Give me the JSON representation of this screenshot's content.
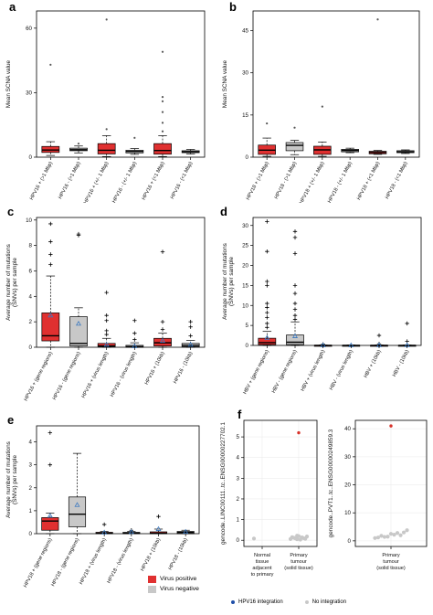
{
  "colors": {
    "positive": "#e03030",
    "negative": "#c8c8c8",
    "mean": "#3a78c0",
    "outlier": "#000000",
    "integration": "#1f4fa8",
    "no_integration": "#c8c8c8",
    "highlight": "#d8322a"
  },
  "legend": {
    "positive_label": "Virus positive",
    "negative_label": "Virus negative",
    "integration_label": "HPV16 integration",
    "no_integration_label": "No integration"
  },
  "chart_data": [
    {
      "id": "a",
      "panel_label": "a",
      "type": "box",
      "ylabel": "Mean SCNA value",
      "ylim": [
        0,
        68
      ],
      "yticks": [
        0,
        30,
        60
      ],
      "grid": false,
      "categories": [
        "HPV16 + (>1 Mbp)",
        "HPV16 - (>1 Mbp)",
        "HPV16 + (+/- 1 Mbp)",
        "HPV16 - (+/- 1 Mbp)",
        "HPV16 + (<1 Mbp)",
        "HPV16 - (<1 Mbp)"
      ],
      "boxes": [
        {
          "group": "positive",
          "min": 0.8,
          "q1": 2.2,
          "median": 3.3,
          "q3": 5.0,
          "max": 7.2,
          "outliers": [
            43
          ]
        },
        {
          "group": "negative",
          "min": 2.0,
          "q1": 3.0,
          "median": 3.5,
          "q3": 4.2,
          "max": 5.2,
          "outliers": [
            6.3
          ]
        },
        {
          "group": "positive",
          "min": 0.3,
          "q1": 1.5,
          "median": 3.2,
          "q3": 6.3,
          "max": 10.0,
          "outliers": [
            13,
            64
          ]
        },
        {
          "group": "negative",
          "min": 1.3,
          "q1": 2.0,
          "median": 2.7,
          "q3": 3.2,
          "max": 4.0,
          "outliers": [
            9
          ]
        },
        {
          "group": "positive",
          "min": 0.3,
          "q1": 1.4,
          "median": 3.1,
          "q3": 6.3,
          "max": 10.0,
          "outliers": [
            12,
            16,
            21,
            26,
            28,
            49
          ]
        },
        {
          "group": "negative",
          "min": 1.5,
          "q1": 2.1,
          "median": 2.5,
          "q3": 3.0,
          "max": 3.6,
          "outliers": []
        }
      ]
    },
    {
      "id": "b",
      "panel_label": "b",
      "type": "box",
      "ylabel": "Mean SCNA value",
      "ylim": [
        0,
        52
      ],
      "yticks": [
        0,
        15,
        30,
        45
      ],
      "grid": false,
      "categories": [
        "HPV18 + (>1 Mbp)",
        "HPV18 - (>1 Mbp)",
        "HPV18 + (+/- 1 Mbp)",
        "HPV18 - (+/- 1 Mbp)",
        "HPV18 + (<1 Mbp)",
        "HPV18 - (<1 Mbp)"
      ],
      "boxes": [
        {
          "group": "positive",
          "min": 0.3,
          "q1": 1.0,
          "median": 2.5,
          "q3": 4.3,
          "max": 6.8,
          "outliers": [
            12
          ]
        },
        {
          "group": "negative",
          "min": 0.9,
          "q1": 2.3,
          "median": 4.2,
          "q3": 5.2,
          "max": 6.0,
          "outliers": [
            10.5
          ]
        },
        {
          "group": "positive",
          "min": 0.3,
          "q1": 1.0,
          "median": 2.6,
          "q3": 3.9,
          "max": 5.4,
          "outliers": [
            18
          ]
        },
        {
          "group": "negative",
          "min": 1.6,
          "q1": 1.9,
          "median": 2.4,
          "q3": 2.8,
          "max": 3.2,
          "outliers": []
        },
        {
          "group": "positive",
          "min": 1.0,
          "q1": 1.2,
          "median": 1.7,
          "q3": 2.1,
          "max": 2.4,
          "outliers": [
            49
          ]
        },
        {
          "group": "negative",
          "min": 1.3,
          "q1": 1.6,
          "median": 1.9,
          "q3": 2.3,
          "max": 2.6,
          "outliers": []
        }
      ]
    },
    {
      "id": "c",
      "panel_label": "c",
      "type": "box",
      "ylabel": "Average number of mutations\n(SNVs) per sample",
      "ylim": [
        0,
        10.2
      ],
      "yticks": [
        0,
        2,
        4,
        6,
        8,
        10
      ],
      "grid": false,
      "categories": [
        "HPV16 + (gene regions)",
        "HPV16 - (gene regions)",
        "HPV16 + (virus length)",
        "HPV16 - (virus length)",
        "HPV16 + (10kb)",
        "HPV16 - (10kb)"
      ],
      "boxes": [
        {
          "group": "positive",
          "min": 0.0,
          "q1": 0.5,
          "median": 0.9,
          "q3": 2.7,
          "max": 5.6,
          "mean": 2.5,
          "outliers": [
            6.5,
            7.3,
            8.3,
            9.7
          ]
        },
        {
          "group": "negative",
          "min": 0.0,
          "q1": 0.1,
          "median": 0.3,
          "q3": 2.4,
          "max": 3.1,
          "mean": 1.85,
          "outliers": [
            8.8,
            8.9
          ]
        },
        {
          "group": "positive",
          "min": 0.0,
          "q1": 0.05,
          "median": 0.1,
          "q3": 0.3,
          "max": 0.7,
          "mean": 0.2,
          "outliers": [
            1.0,
            1.3,
            2.1,
            2.5,
            4.3
          ]
        },
        {
          "group": "negative",
          "min": 0.0,
          "q1": 0.0,
          "median": 0.05,
          "q3": 0.15,
          "max": 0.35,
          "mean": 0.08,
          "outliers": [
            0.6,
            1.1,
            2.1
          ]
        },
        {
          "group": "positive",
          "min": 0.0,
          "q1": 0.1,
          "median": 0.35,
          "q3": 0.7,
          "max": 1.1,
          "mean": 0.5,
          "outliers": [
            1.4,
            2.0,
            7.5
          ]
        },
        {
          "group": "negative",
          "min": 0.0,
          "q1": 0.05,
          "median": 0.15,
          "q3": 0.3,
          "max": 0.55,
          "mean": 0.2,
          "outliers": [
            0.9,
            1.6,
            2.0
          ]
        }
      ]
    },
    {
      "id": "d",
      "panel_label": "d",
      "type": "box",
      "ylabel": "Average number of mutations\n(SNVs) per sample",
      "ylim": [
        0,
        32
      ],
      "yticks": [
        0,
        5,
        10,
        15,
        20,
        25,
        30
      ],
      "grid": false,
      "categories": [
        "HBV + (gene regions)",
        "HBV - (gene regions)",
        "HBV + (virus length)",
        "HBV - (virus length)",
        "HBV + (10kb)",
        "HBV - (10kb)"
      ],
      "boxes": [
        {
          "group": "positive",
          "min": 0.0,
          "q1": 0.2,
          "median": 0.7,
          "q3": 1.8,
          "max": 3.5,
          "mean": 1.9,
          "outliers": [
            4.5,
            5.5,
            7.0,
            8.2,
            9.5,
            10.5,
            15,
            16,
            23.5,
            31
          ]
        },
        {
          "group": "negative",
          "min": 0.0,
          "q1": 0.2,
          "median": 0.8,
          "q3": 2.6,
          "max": 5.9,
          "mean": 2.3,
          "outliers": [
            6.5,
            7.5,
            9.0,
            10.5,
            13,
            15,
            23,
            27,
            28.5
          ]
        },
        {
          "group": "positive",
          "min": 0.0,
          "q1": 0.0,
          "median": 0.0,
          "q3": 0.05,
          "max": 0.1,
          "mean": 0.03,
          "outliers": [
            0.3
          ]
        },
        {
          "group": "negative",
          "min": 0.0,
          "q1": 0.0,
          "median": 0.0,
          "q3": 0.05,
          "max": 0.1,
          "mean": 0.03,
          "outliers": []
        },
        {
          "group": "positive",
          "min": 0.0,
          "q1": 0.0,
          "median": 0.0,
          "q3": 0.05,
          "max": 0.1,
          "mean": 0.05,
          "outliers": [
            0.4,
            2.5
          ]
        },
        {
          "group": "negative",
          "min": 0.0,
          "q1": 0.0,
          "median": 0.0,
          "q3": 0.05,
          "max": 0.1,
          "mean": 0.05,
          "outliers": [
            1.0,
            5.5
          ]
        }
      ]
    },
    {
      "id": "e",
      "panel_label": "e",
      "type": "box",
      "ylabel": "Average number of mutations\n(SNVs) per sample",
      "ylim": [
        0,
        4.7
      ],
      "yticks": [
        0,
        1,
        2,
        3,
        4
      ],
      "grid": false,
      "categories": [
        "HPV18 + (gene regions)",
        "HPV18 - (gene regions)",
        "HPV18 + (virus length)",
        "HPV18 - (virus length)",
        "HPV18 + (10kb)",
        "HPV18 - (10kb)"
      ],
      "boxes": [
        {
          "group": "positive",
          "min": 0.0,
          "q1": 0.15,
          "median": 0.55,
          "q3": 0.7,
          "max": 0.9,
          "mean": 0.78,
          "outliers": [
            3.0,
            4.4
          ]
        },
        {
          "group": "negative",
          "min": 0.0,
          "q1": 0.3,
          "median": 0.85,
          "q3": 1.6,
          "max": 3.5,
          "mean": 1.25,
          "outliers": []
        },
        {
          "group": "positive",
          "min": 0.0,
          "q1": 0.0,
          "median": 0.02,
          "q3": 0.06,
          "max": 0.1,
          "mean": 0.05,
          "outliers": [
            0.4
          ]
        },
        {
          "group": "negative",
          "min": 0.0,
          "q1": 0.0,
          "median": 0.02,
          "q3": 0.06,
          "max": 0.1,
          "mean": 0.07,
          "outliers": [
            0.15
          ]
        },
        {
          "group": "positive",
          "min": 0.0,
          "q1": 0.0,
          "median": 0.02,
          "q3": 0.08,
          "max": 0.2,
          "mean": 0.2,
          "outliers": [
            0.75
          ]
        },
        {
          "group": "negative",
          "min": 0.0,
          "q1": 0.0,
          "median": 0.05,
          "q3": 0.1,
          "max": 0.15,
          "mean": 0.08,
          "outliers": []
        }
      ]
    },
    {
      "id": "f1",
      "panel_label": "f",
      "type": "scatter",
      "ylabel": "gencode..LINC00111..tc..ENSG00000227702.1",
      "ylim": [
        -0.3,
        5.8
      ],
      "yticks": [
        0,
        1,
        2,
        3,
        4,
        5
      ],
      "grid": true,
      "categories": [
        "Normal\ntissue\nadjacent\nto primary",
        "Primary\ntumour\n(solid tissue)"
      ],
      "points": [
        {
          "cat": 0,
          "y": 0.08,
          "type": "no_integration"
        },
        {
          "cat": 1,
          "y": 0.05,
          "type": "no_integration"
        },
        {
          "cat": 1,
          "y": 0.1,
          "type": "no_integration"
        },
        {
          "cat": 1,
          "y": 0.15,
          "type": "no_integration"
        },
        {
          "cat": 1,
          "y": 0.2,
          "type": "no_integration"
        },
        {
          "cat": 1,
          "y": 0.07,
          "type": "no_integration"
        },
        {
          "cat": 1,
          "y": 0.12,
          "type": "no_integration"
        },
        {
          "cat": 1,
          "y": 0.03,
          "type": "no_integration"
        },
        {
          "cat": 1,
          "y": 0.18,
          "type": "no_integration"
        },
        {
          "cat": 1,
          "y": 0.09,
          "type": "no_integration"
        },
        {
          "cat": 1,
          "y": 0.14,
          "type": "no_integration"
        },
        {
          "cat": 1,
          "y": 0.06,
          "type": "no_integration"
        },
        {
          "cat": 1,
          "y": 0.22,
          "type": "no_integration"
        },
        {
          "cat": 1,
          "y": 5.2,
          "type": "highlight"
        }
      ]
    },
    {
      "id": "f2",
      "panel_label": "",
      "type": "scatter",
      "ylabel": "gencode..PVT1..tc..ENSG00000249859.3",
      "ylim": [
        -2,
        43
      ],
      "yticks": [
        0,
        10,
        20,
        30,
        40
      ],
      "grid": true,
      "categories": [
        "Primary\ntumour\n(solid tissue)"
      ],
      "points": [
        {
          "cat": 0,
          "y": 1.0,
          "type": "no_integration"
        },
        {
          "cat": 0,
          "y": 1.5,
          "type": "no_integration"
        },
        {
          "cat": 0,
          "y": 2.0,
          "type": "no_integration"
        },
        {
          "cat": 0,
          "y": 1.2,
          "type": "no_integration"
        },
        {
          "cat": 0,
          "y": 2.5,
          "type": "no_integration"
        },
        {
          "cat": 0,
          "y": 3.0,
          "type": "no_integration"
        },
        {
          "cat": 0,
          "y": 1.8,
          "type": "no_integration"
        },
        {
          "cat": 0,
          "y": 2.2,
          "type": "no_integration"
        },
        {
          "cat": 0,
          "y": 3.8,
          "type": "no_integration"
        },
        {
          "cat": 0,
          "y": 1.4,
          "type": "no_integration"
        },
        {
          "cat": 0,
          "y": 2.8,
          "type": "no_integration"
        },
        {
          "cat": 0,
          "y": 41.0,
          "type": "highlight"
        }
      ]
    }
  ]
}
